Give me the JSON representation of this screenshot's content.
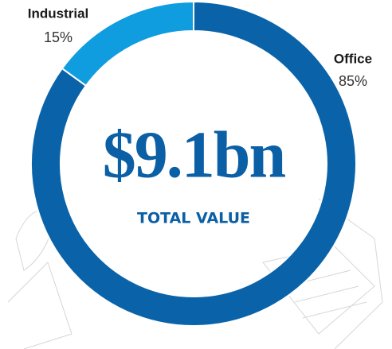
{
  "chart_data": {
    "type": "donut",
    "categories": [
      "Office",
      "Industrial"
    ],
    "values": [
      85,
      15
    ],
    "value_labels": [
      "85%",
      "15%"
    ],
    "colors": [
      "#0a63a8",
      "#0f9de0"
    ],
    "center_text": "$9.1bn",
    "center_subtext": "TOTAL VALUE"
  }
}
